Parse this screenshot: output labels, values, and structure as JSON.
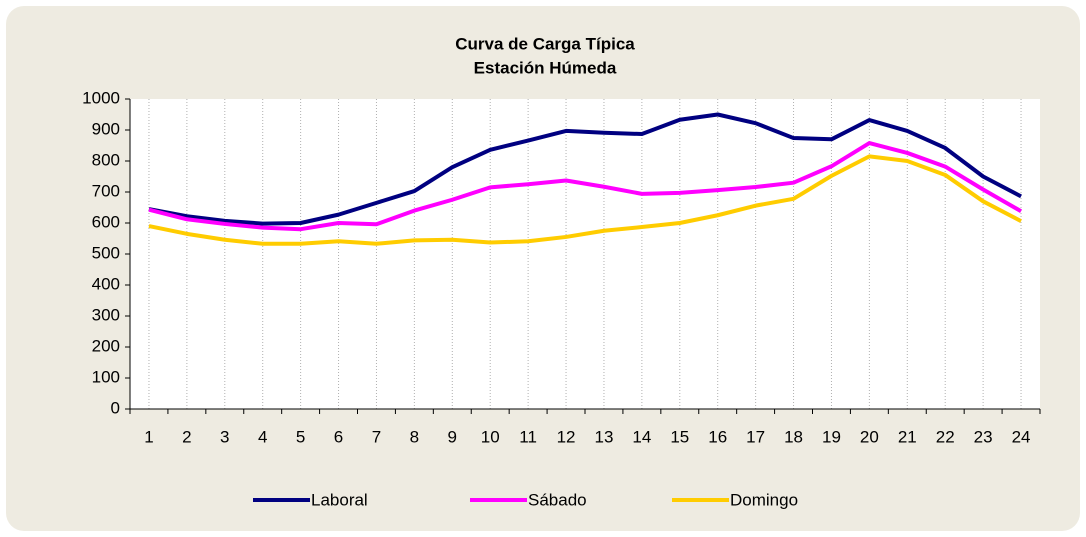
{
  "chart_data": {
    "type": "line",
    "title": "Curva de Carga Típica",
    "subtitle": "Estación Húmeda",
    "categories": [
      1,
      2,
      3,
      4,
      5,
      6,
      7,
      8,
      9,
      10,
      11,
      12,
      13,
      14,
      15,
      16,
      17,
      18,
      19,
      20,
      21,
      22,
      23,
      24
    ],
    "series": [
      {
        "name": "Laboral",
        "color": "#000080",
        "values": [
          645,
          622,
          607,
          598,
          600,
          627,
          665,
          703,
          780,
          836,
          866,
          897,
          891,
          887,
          933,
          950,
          922,
          874,
          870,
          932,
          897,
          842,
          750,
          686
        ]
      },
      {
        "name": "Sábado",
        "color": "#ff00ff",
        "values": [
          643,
          612,
          597,
          585,
          580,
          600,
          596,
          640,
          675,
          715,
          725,
          737,
          717,
          694,
          697,
          706,
          716,
          730,
          783,
          858,
          826,
          782,
          708,
          638
        ]
      },
      {
        "name": "Domingo",
        "color": "#ffcc00",
        "values": [
          590,
          565,
          546,
          533,
          533,
          541,
          533,
          544,
          546,
          537,
          541,
          555,
          575,
          587,
          600,
          625,
          656,
          678,
          752,
          815,
          800,
          755,
          670,
          606
        ]
      }
    ],
    "ylim": [
      0,
      1000
    ],
    "yticks": [
      0,
      100,
      200,
      300,
      400,
      500,
      600,
      700,
      800,
      900,
      1000
    ],
    "grid": true
  }
}
